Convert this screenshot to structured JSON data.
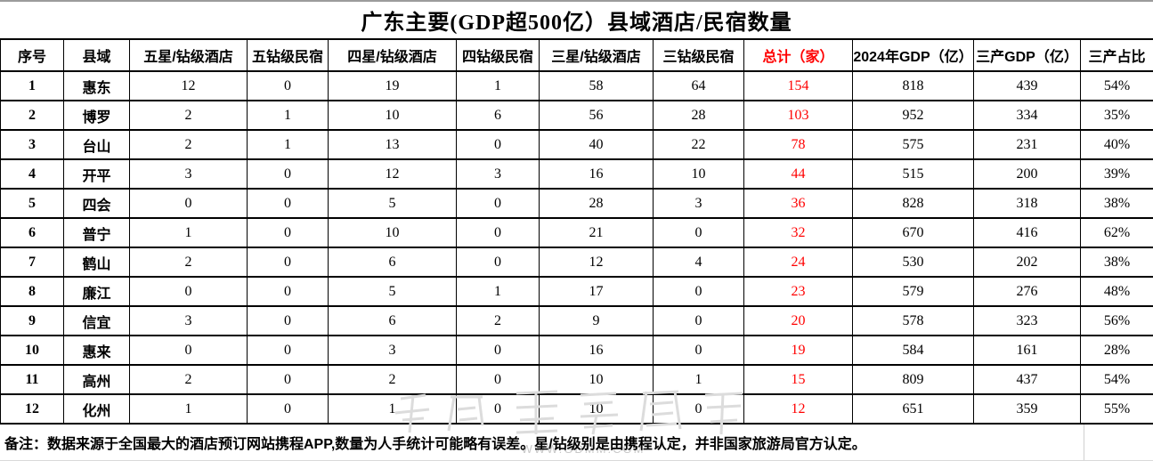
{
  "title": "广东主要(GDP超500亿）县域酒店/民宿数量",
  "table": {
    "columns": [
      "序号",
      "县域",
      "五星/钻级酒店",
      "五钻级民宿",
      "四星/钻级酒店",
      "四钻级民宿",
      "三星/钻级酒店",
      "三钻级民宿",
      "总计（家）",
      "2024年GDP（亿）",
      "三产GDP（亿）",
      "三产占比"
    ],
    "red_column_index": 8
  },
  "rows": [
    [
      "1",
      "惠东",
      "12",
      "0",
      "19",
      "1",
      "58",
      "64",
      "154",
      "818",
      "439",
      "54%"
    ],
    [
      "2",
      "博罗",
      "2",
      "1",
      "10",
      "6",
      "56",
      "28",
      "103",
      "952",
      "334",
      "35%"
    ],
    [
      "3",
      "台山",
      "2",
      "1",
      "13",
      "0",
      "40",
      "22",
      "78",
      "575",
      "231",
      "40%"
    ],
    [
      "4",
      "开平",
      "3",
      "0",
      "12",
      "3",
      "16",
      "10",
      "44",
      "515",
      "200",
      "39%"
    ],
    [
      "5",
      "四会",
      "0",
      "0",
      "5",
      "0",
      "28",
      "3",
      "36",
      "828",
      "318",
      "38%"
    ],
    [
      "6",
      "普宁",
      "1",
      "0",
      "10",
      "0",
      "21",
      "0",
      "32",
      "670",
      "416",
      "62%"
    ],
    [
      "7",
      "鹤山",
      "2",
      "0",
      "6",
      "0",
      "12",
      "4",
      "24",
      "530",
      "202",
      "38%"
    ],
    [
      "8",
      "廉江",
      "0",
      "0",
      "5",
      "1",
      "17",
      "0",
      "23",
      "579",
      "276",
      "48%"
    ],
    [
      "9",
      "信宜",
      "3",
      "0",
      "6",
      "2",
      "9",
      "0",
      "20",
      "578",
      "323",
      "56%"
    ],
    [
      "10",
      "惠来",
      "0",
      "0",
      "3",
      "0",
      "16",
      "0",
      "19",
      "584",
      "161",
      "28%"
    ],
    [
      "11",
      "高州",
      "2",
      "0",
      "2",
      "0",
      "10",
      "1",
      "15",
      "809",
      "437",
      "54%"
    ],
    [
      "12",
      "化州",
      "1",
      "0",
      "1",
      "0",
      "10",
      "0",
      "12",
      "651",
      "359",
      "55%"
    ]
  ],
  "note": "备注：数据来源于全国最大的酒店预订网站携程APP,数量为人手统计可能略有误差。星/钻级别是由携程认定，并非国家旅游局官方认定。",
  "watermark": {
    "url": "WWW.GDMM.COM"
  },
  "colors": {
    "accent_red": "#ff0000",
    "grid_black": "#000000",
    "faint_grid": "#d9d9d9",
    "watermark_gray": "#cccccc"
  }
}
